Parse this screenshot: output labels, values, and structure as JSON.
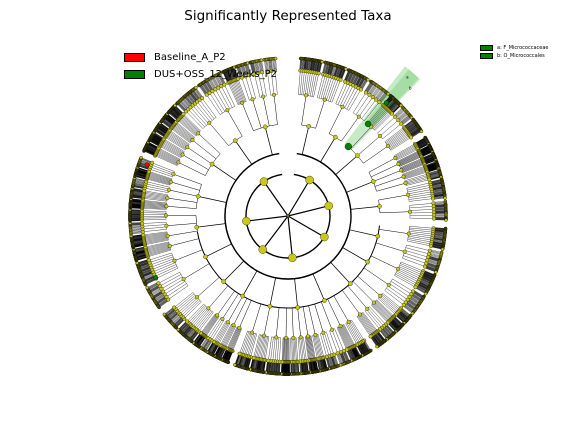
{
  "title": "Significantly Represented Taxa",
  "legend": {
    "items": [
      {
        "label": "Baseline_A_P2",
        "color": "#ff0000"
      },
      {
        "label": "DUS+OSS_12_Weeks_P2",
        "color": "#008000"
      }
    ]
  },
  "key_legend": {
    "items": [
      {
        "label": "a: F_Micrococcaceae",
        "color": "#008000"
      },
      {
        "label": "b: O_Micrococcales",
        "color": "#008000"
      }
    ]
  },
  "clade_markers": [
    "a",
    "b"
  ],
  "colors": {
    "node": "#c8c819",
    "edge": "#000000",
    "baseline": "#ff0000",
    "treatment": "#008000",
    "highlight": "#7fd07f"
  }
}
